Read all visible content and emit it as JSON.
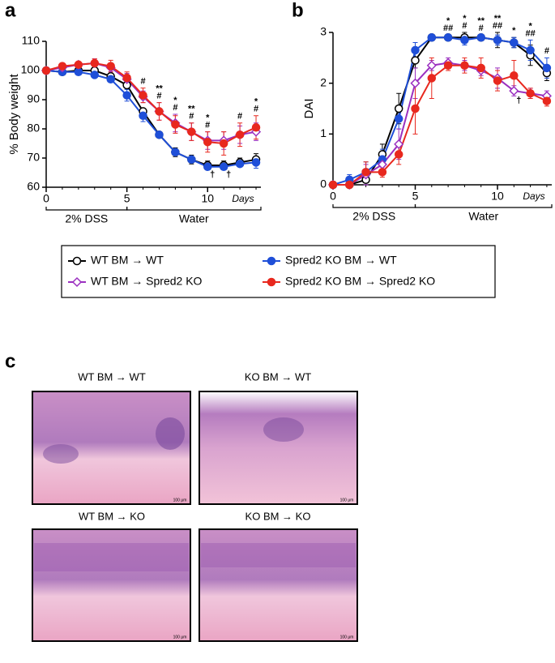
{
  "panel_labels": [
    "a",
    "b",
    "c"
  ],
  "chart_data": [
    {
      "type": "line",
      "y_label": "% Body weight",
      "x_label": "Days",
      "x": [
        0,
        1,
        2,
        3,
        4,
        5,
        6,
        7,
        8,
        9,
        10,
        11,
        12,
        13
      ],
      "xlim": [
        0,
        13.3
      ],
      "ylim": [
        60,
        110
      ],
      "xticks": [
        0,
        5,
        10
      ],
      "yticks": [
        60,
        70,
        80,
        90,
        100,
        110
      ],
      "phases": [
        {
          "label": "2% DSS",
          "start": 0,
          "end": 5
        },
        {
          "label": "Water",
          "start": 5,
          "end": 13.3
        }
      ],
      "series": [
        {
          "name": "WT BM → WT",
          "color": "#000000",
          "marker": "circle-open",
          "values": [
            100,
            99.5,
            100,
            100,
            98,
            95,
            86,
            78,
            72,
            69.5,
            67.5,
            67.5,
            68.5,
            69.5
          ],
          "errors": [
            0,
            0.5,
            0.5,
            0.5,
            1,
            1,
            1,
            1,
            1.5,
            1.5,
            1.5,
            1.5,
            1.5,
            2
          ]
        },
        {
          "name": "Spred2 KO BM → WT",
          "color": "#1f4fd8",
          "marker": "circle",
          "values": [
            100,
            99.5,
            99.5,
            98.5,
            97,
            91.5,
            84.5,
            78,
            72,
            69.5,
            67,
            67,
            68,
            68.5
          ],
          "errors": [
            0,
            0.5,
            0.5,
            1,
            1,
            2,
            2,
            1,
            1,
            1,
            1,
            1,
            1,
            2
          ]
        },
        {
          "name": "WT BM → Spred2 KO",
          "color": "#9b30c0",
          "marker": "diamond-open",
          "values": [
            100,
            101,
            102,
            102.5,
            101,
            97,
            91,
            86,
            82,
            79,
            76,
            76,
            78,
            79
          ],
          "errors": [
            0,
            1,
            1,
            1.5,
            1.5,
            2,
            2,
            3,
            3,
            3,
            3,
            3,
            3,
            3
          ]
        },
        {
          "name": "Spred2 KO BM → Spred2 KO",
          "color": "#e8281e",
          "marker": "circle",
          "values": [
            100,
            101.5,
            102,
            102.5,
            101.5,
            97.5,
            91.5,
            86,
            81.5,
            79,
            75.5,
            75,
            78,
            80.5
          ],
          "errors": [
            0,
            1,
            1,
            1.5,
            2,
            2,
            2.5,
            3,
            3,
            3,
            3.5,
            4,
            4,
            4
          ]
        }
      ],
      "annotations": [
        {
          "x": 6,
          "position": "above",
          "lines": [
            "#"
          ]
        },
        {
          "x": 7,
          "position": "above",
          "lines": [
            "**",
            "#"
          ]
        },
        {
          "x": 8,
          "position": "above",
          "lines": [
            "*",
            "#"
          ]
        },
        {
          "x": 9,
          "position": "above",
          "lines": [
            "**",
            "#"
          ]
        },
        {
          "x": 10,
          "position": "above",
          "lines": [
            "*",
            "#"
          ]
        },
        {
          "x": 12,
          "position": "above",
          "lines": [
            "#"
          ]
        },
        {
          "x": 13,
          "position": "above",
          "lines": [
            "*",
            "#"
          ]
        },
        {
          "x": 10,
          "position": "below",
          "lines": [
            "†"
          ]
        },
        {
          "x": 11,
          "position": "below",
          "lines": [
            "†"
          ]
        }
      ]
    },
    {
      "type": "line",
      "y_label": "DAI",
      "x_label": "Days",
      "x": [
        0,
        1,
        2,
        3,
        4,
        5,
        6,
        7,
        8,
        9,
        10,
        11,
        12,
        13
      ],
      "xlim": [
        0,
        13.3
      ],
      "ylim": [
        0,
        3
      ],
      "xticks": [
        0,
        5,
        10
      ],
      "yticks": [
        0,
        1,
        2,
        3
      ],
      "phases": [
        {
          "label": "2% DSS",
          "start": 0,
          "end": 5
        },
        {
          "label": "Water",
          "start": 5,
          "end": 13.3
        }
      ],
      "series": [
        {
          "name": "WT BM → WT",
          "color": "#000000",
          "marker": "circle-open",
          "values": [
            0,
            0,
            0.1,
            0.6,
            1.5,
            2.45,
            2.9,
            2.9,
            2.9,
            2.9,
            2.85,
            2.8,
            2.55,
            2.2
          ],
          "errors": [
            0,
            0,
            0.1,
            0.2,
            0.3,
            0.15,
            0.05,
            0.05,
            0.1,
            0.05,
            0.15,
            0.1,
            0.2,
            0.15
          ]
        },
        {
          "name": "Spred2 KO BM → WT",
          "color": "#1f4fd8",
          "marker": "circle",
          "values": [
            0,
            0.1,
            0.25,
            0.5,
            1.3,
            2.65,
            2.9,
            2.9,
            2.85,
            2.9,
            2.85,
            2.8,
            2.65,
            2.3
          ],
          "errors": [
            0,
            0.1,
            0.2,
            0.2,
            0.2,
            0.15,
            0.05,
            0.05,
            0.1,
            0.05,
            0.1,
            0.1,
            0.2,
            0.2
          ]
        },
        {
          "name": "WT BM → Spred2 KO",
          "color": "#9b30c0",
          "marker": "diamond-open",
          "values": [
            0,
            0,
            0.2,
            0.4,
            0.8,
            2,
            2.35,
            2.4,
            2.35,
            2.25,
            2.1,
            1.85,
            1.8,
            1.75
          ],
          "errors": [
            0,
            0,
            0.2,
            0.2,
            0.3,
            0.3,
            0.1,
            0.1,
            0.1,
            0.1,
            0.2,
            0.1,
            0.1,
            0.1
          ]
        },
        {
          "name": "Spred2 KO BM → Spred2 KO",
          "color": "#e8281e",
          "marker": "circle",
          "values": [
            0,
            0,
            0.25,
            0.25,
            0.6,
            1.5,
            2.1,
            2.35,
            2.35,
            2.3,
            2.05,
            2.15,
            1.8,
            1.65
          ],
          "errors": [
            0,
            0,
            0.2,
            0.1,
            0.2,
            0.5,
            0.4,
            0.1,
            0.15,
            0.2,
            0.2,
            0.3,
            0.1,
            0.1
          ]
        }
      ],
      "annotations": [
        {
          "x": 7,
          "position": "above",
          "lines": [
            "*",
            "##"
          ]
        },
        {
          "x": 8,
          "position": "above",
          "lines": [
            "*",
            "#"
          ]
        },
        {
          "x": 9,
          "position": "above",
          "lines": [
            "**",
            "#"
          ]
        },
        {
          "x": 10,
          "position": "above",
          "lines": [
            "**",
            "##"
          ]
        },
        {
          "x": 11,
          "position": "above",
          "lines": [
            "*"
          ]
        },
        {
          "x": 12,
          "position": "above",
          "lines": [
            "*",
            "##"
          ]
        },
        {
          "x": 13,
          "position": "above",
          "lines": [
            "#"
          ]
        },
        {
          "x": 11,
          "position": "below",
          "lines": [
            "†"
          ]
        }
      ]
    }
  ],
  "histology": [
    {
      "label": "WT BM → WT",
      "scale_bar": "100 μm"
    },
    {
      "label": "KO BM → WT",
      "scale_bar": "100 μm"
    },
    {
      "label": "WT BM → KO",
      "scale_bar": "100 μm"
    },
    {
      "label": "KO BM → KO",
      "scale_bar": "100 μm"
    }
  ]
}
